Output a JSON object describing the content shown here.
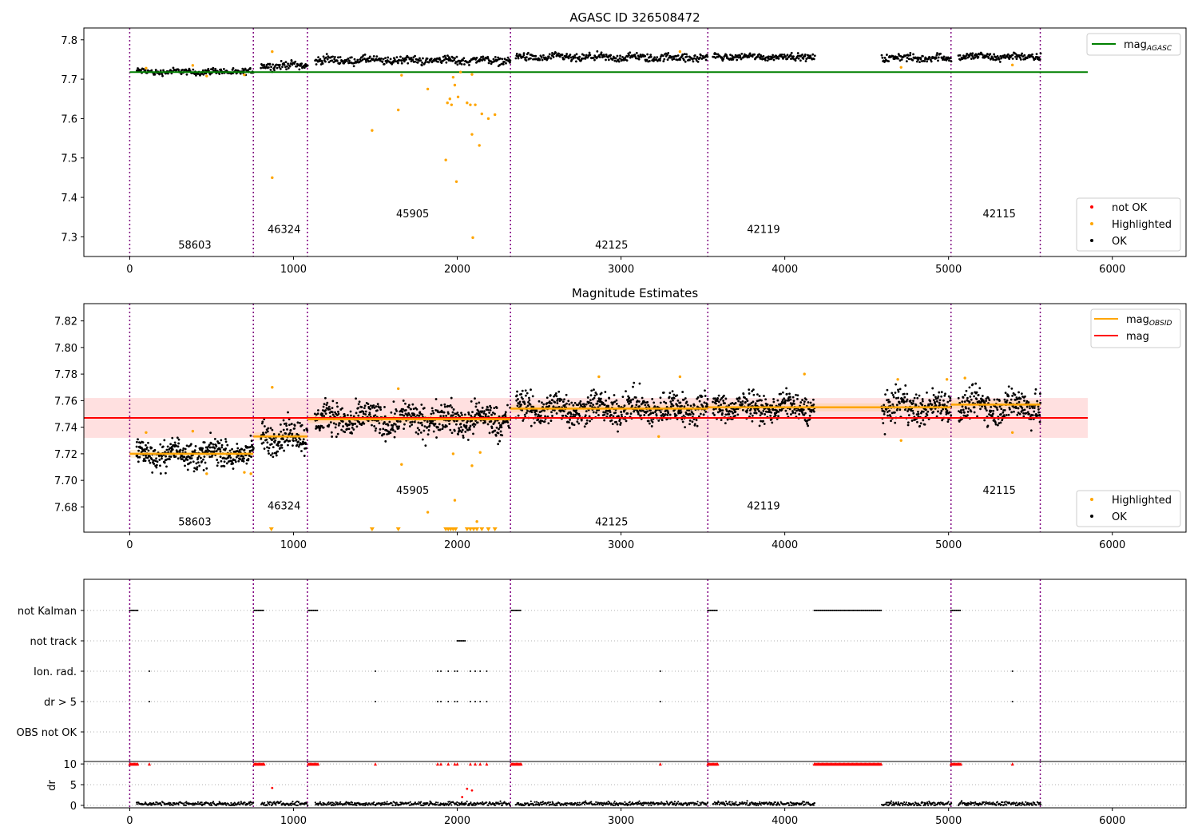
{
  "chart_data": [
    {
      "type": "scatter",
      "title": "AGASC ID 326508472",
      "xlim": [
        -280,
        6450
      ],
      "ylim": [
        7.25,
        7.83
      ],
      "xticks": [
        0,
        1000,
        2000,
        3000,
        4000,
        5000,
        6000
      ],
      "yticks": [
        7.3,
        7.4,
        7.5,
        7.6,
        7.7,
        7.8
      ],
      "yticklabels": [
        "7.3",
        "7.4",
        "7.5",
        "7.6",
        "7.7",
        "7.8"
      ],
      "reference_line": {
        "name": "mag_AGASC",
        "value": 7.718,
        "x_range": [
          0,
          5850
        ],
        "color": "#008000"
      },
      "observation_boundaries": [
        0,
        755,
        1085,
        2325,
        3530,
        5015,
        5560
      ],
      "segments": [
        {
          "obsid": "58603",
          "x0": 40,
          "x1": 755,
          "level": 7.719,
          "spread": 0.004,
          "label_y": 7.28
        },
        {
          "obsid": "46324",
          "x0": 800,
          "x1": 1085,
          "level": 7.735,
          "spread": 0.005,
          "label_y": 7.32
        },
        {
          "obsid": "45905",
          "x0": 1130,
          "x1": 2325,
          "level": 7.748,
          "spread": 0.005,
          "label_y": 7.36
        },
        {
          "obsid": "42125",
          "x0": 2355,
          "x1": 3530,
          "level": 7.755,
          "spread": 0.005,
          "label_y": 7.28
        },
        {
          "obsid": "42119",
          "x0": 3560,
          "x1": 4180,
          "level": 7.757,
          "spread": 0.004,
          "label_y": 7.32
        },
        {
          "obsid": "",
          "x0": 4590,
          "x1": 5015,
          "level": 7.754,
          "spread": 0.005
        },
        {
          "obsid": "42115",
          "x0": 5060,
          "x1": 5560,
          "level": 7.757,
          "spread": 0.005,
          "label_y": 7.36
        }
      ],
      "highlighted_points": [
        {
          "x": 870,
          "y": 7.45
        },
        {
          "x": 870,
          "y": 7.77
        },
        {
          "x": 1480,
          "y": 7.57
        },
        {
          "x": 1640,
          "y": 7.622
        },
        {
          "x": 1660,
          "y": 7.71
        },
        {
          "x": 1820,
          "y": 7.675
        },
        {
          "x": 1930,
          "y": 7.495
        },
        {
          "x": 1940,
          "y": 7.64
        },
        {
          "x": 1955,
          "y": 7.65
        },
        {
          "x": 1965,
          "y": 7.635
        },
        {
          "x": 1975,
          "y": 7.705
        },
        {
          "x": 1985,
          "y": 7.685
        },
        {
          "x": 1995,
          "y": 7.44
        },
        {
          "x": 2005,
          "y": 7.655
        },
        {
          "x": 2020,
          "y": 7.718
        },
        {
          "x": 2060,
          "y": 7.64
        },
        {
          "x": 2080,
          "y": 7.635
        },
        {
          "x": 2090,
          "y": 7.56
        },
        {
          "x": 2095,
          "y": 7.298
        },
        {
          "x": 2110,
          "y": 7.635
        },
        {
          "x": 2135,
          "y": 7.532
        },
        {
          "x": 2150,
          "y": 7.612
        },
        {
          "x": 2190,
          "y": 7.6
        },
        {
          "x": 2230,
          "y": 7.61
        },
        {
          "x": 2090,
          "y": 7.712
        },
        {
          "x": 100,
          "y": 7.728
        },
        {
          "x": 385,
          "y": 7.735
        },
        {
          "x": 470,
          "y": 7.708
        },
        {
          "x": 700,
          "y": 7.711
        },
        {
          "x": 3360,
          "y": 7.77
        },
        {
          "x": 4710,
          "y": 7.73
        },
        {
          "x": 5390,
          "y": 7.736
        }
      ],
      "legend_top": [
        {
          "label": "mag",
          "subscript": "AGASC",
          "color": "#008000",
          "kind": "line"
        }
      ],
      "legend_bottom": [
        {
          "label": "not OK",
          "color": "#ff0000",
          "kind": "dot"
        },
        {
          "label": "Highlighted",
          "color": "#ffa500",
          "kind": "dot"
        },
        {
          "label": "OK",
          "color": "#000000",
          "kind": "dot"
        }
      ]
    },
    {
      "type": "scatter",
      "title": "Magnitude Estimates",
      "xlim": [
        -280,
        6450
      ],
      "ylim": [
        7.661,
        7.833
      ],
      "xticks": [
        0,
        1000,
        2000,
        3000,
        4000,
        5000,
        6000
      ],
      "yticks": [
        7.68,
        7.7,
        7.72,
        7.74,
        7.76,
        7.78,
        7.8,
        7.82
      ],
      "yticklabels": [
        "7.68",
        "7.70",
        "7.72",
        "7.74",
        "7.76",
        "7.78",
        "7.80",
        "7.82"
      ],
      "mean_line": {
        "name": "mag",
        "value": 7.747,
        "x_range": [
          -280,
          5850
        ],
        "band": [
          7.732,
          7.762
        ],
        "color": "#ff0000"
      },
      "observation_boundaries": [
        0,
        755,
        1085,
        2325,
        3530,
        5015,
        5560
      ],
      "segments": [
        {
          "obsid": "58603",
          "x0": 40,
          "x1": 755,
          "level": 7.72,
          "spread": 0.005,
          "label_y": 7.669
        },
        {
          "obsid": "46324",
          "x0": 800,
          "x1": 1085,
          "level": 7.733,
          "spread": 0.006,
          "label_y": 7.681
        },
        {
          "obsid": "45905",
          "x0": 1130,
          "x1": 2325,
          "level": 7.746,
          "spread": 0.006,
          "label_y": 7.693
        },
        {
          "obsid": "42125",
          "x0": 2355,
          "x1": 3530,
          "level": 7.754,
          "spread": 0.006,
          "label_y": 7.669
        },
        {
          "obsid": "42119",
          "x0": 3560,
          "x1": 4180,
          "level": 7.755,
          "spread": 0.005,
          "label_y": 7.681
        },
        {
          "obsid": "",
          "x0": 4590,
          "x1": 5015,
          "level": 7.755,
          "spread": 0.006
        },
        {
          "obsid": "42115",
          "x0": 5060,
          "x1": 5560,
          "level": 7.756,
          "spread": 0.006,
          "label_y": 7.693
        }
      ],
      "obsid_means": [
        {
          "x0": 0,
          "x1": 755,
          "value": 7.72
        },
        {
          "x0": 755,
          "x1": 1085,
          "value": 7.733
        },
        {
          "x0": 1085,
          "x1": 2325,
          "value": 7.746
        },
        {
          "x0": 2325,
          "x1": 3530,
          "value": 7.754
        },
        {
          "x0": 3530,
          "x1": 5015,
          "value": 7.755
        },
        {
          "x0": 5015,
          "x1": 5560,
          "value": 7.757
        }
      ],
      "highlighted_points": [
        {
          "x": 870,
          "y": 7.77
        },
        {
          "x": 100,
          "y": 7.736
        },
        {
          "x": 385,
          "y": 7.737
        },
        {
          "x": 470,
          "y": 7.705
        },
        {
          "x": 700,
          "y": 7.706
        },
        {
          "x": 740,
          "y": 7.705
        },
        {
          "x": 1640,
          "y": 7.769
        },
        {
          "x": 1660,
          "y": 7.712
        },
        {
          "x": 1820,
          "y": 7.676
        },
        {
          "x": 1975,
          "y": 7.72
        },
        {
          "x": 1985,
          "y": 7.685
        },
        {
          "x": 2090,
          "y": 7.711
        },
        {
          "x": 2120,
          "y": 7.669
        },
        {
          "x": 2140,
          "y": 7.721
        },
        {
          "x": 2865,
          "y": 7.778
        },
        {
          "x": 3230,
          "y": 7.733
        },
        {
          "x": 3360,
          "y": 7.778
        },
        {
          "x": 4120,
          "y": 7.78
        },
        {
          "x": 4690,
          "y": 7.776
        },
        {
          "x": 4710,
          "y": 7.73
        },
        {
          "x": 5390,
          "y": 7.736
        },
        {
          "x": 5100,
          "y": 7.777
        },
        {
          "x": 4990,
          "y": 7.776
        }
      ],
      "clipped_points_x": [
        865,
        1480,
        1640,
        1930,
        1945,
        1960,
        1975,
        1990,
        2060,
        2080,
        2100,
        2120,
        2150,
        2190,
        2230
      ],
      "legend_top": [
        {
          "label": "mag",
          "subscript": "OBSID",
          "color": "#ffa500",
          "kind": "line"
        },
        {
          "label": "mag",
          "subscript": "",
          "color": "#ff0000",
          "kind": "line"
        }
      ],
      "legend_bottom": [
        {
          "label": "Highlighted",
          "color": "#ffa500",
          "kind": "dot"
        },
        {
          "label": "OK",
          "color": "#000000",
          "kind": "dot"
        }
      ]
    },
    {
      "type": "scatter",
      "title": "",
      "xlim": [
        -280,
        6450
      ],
      "xticks": [
        0,
        1000,
        2000,
        3000,
        4000,
        5000,
        6000
      ],
      "observation_boundaries": [
        0,
        755,
        1085,
        2325,
        3530,
        5015,
        5560
      ],
      "flag_rows": [
        {
          "label": "not Kalman",
          "ranges": [
            [
              0,
              50
            ],
            [
              760,
              820
            ],
            [
              1090,
              1150
            ],
            [
              2330,
              2390
            ],
            [
              3530,
              3590
            ],
            [
              4180,
              4590
            ],
            [
              5015,
              5075
            ]
          ],
          "points": []
        },
        {
          "label": "not track",
          "ranges": [
            [
              2000,
              2050
            ]
          ],
          "points": []
        },
        {
          "label": "Ion. rad.",
          "ranges": [],
          "points": [
            120,
            1500,
            1880,
            1900,
            1945,
            1985,
            2000,
            2080,
            2110,
            2140,
            2180,
            3240,
            5390
          ]
        },
        {
          "label": "dr > 5",
          "ranges": [],
          "points": [
            120,
            1500,
            1880,
            1900,
            1945,
            1985,
            2000,
            2080,
            2110,
            2140,
            2180,
            3240,
            5390
          ]
        },
        {
          "label": "OBS not OK",
          "ranges": [],
          "points": []
        }
      ],
      "dr_panel": {
        "ylabel": "dr",
        "ylim": [
          -0.6,
          10.6
        ],
        "yticks": [
          0,
          5,
          10
        ],
        "clipped_at_10": [
          [
            0,
            50
          ],
          [
            760,
            820
          ],
          [
            1090,
            1150
          ],
          [
            2330,
            2390
          ],
          [
            3530,
            3590
          ],
          [
            4180,
            4590
          ],
          [
            5015,
            5075
          ]
        ],
        "clipped_points_x": [
          120,
          1500,
          1880,
          1900,
          1945,
          1985,
          2000,
          2080,
          2110,
          2140,
          2180,
          3240,
          5390
        ],
        "red_points": [
          {
            "x": 870,
            "y": 4.2
          },
          {
            "x": 2060,
            "y": 4.0
          },
          {
            "x": 2090,
            "y": 3.6
          },
          {
            "x": 2030,
            "y": 2.0
          }
        ],
        "black_level": 0.4,
        "segments": [
          [
            40,
            755
          ],
          [
            800,
            1085
          ],
          [
            1130,
            2325
          ],
          [
            2355,
            3530
          ],
          [
            3560,
            4180
          ],
          [
            4590,
            5015
          ],
          [
            5060,
            5560
          ]
        ]
      }
    }
  ]
}
